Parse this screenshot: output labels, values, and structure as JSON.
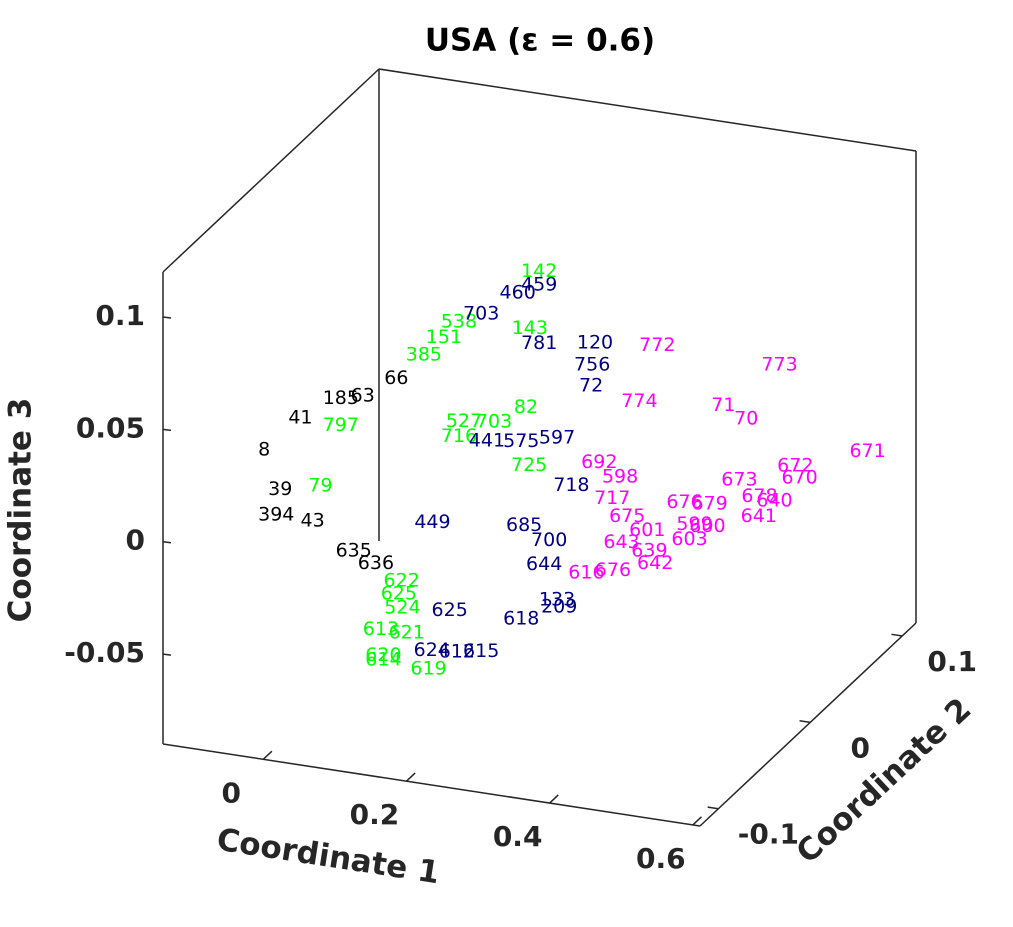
{
  "chart_data": {
    "type": "scatter3d",
    "title": "USA (ε = 0.6)",
    "xlabel": "Coordinate 1",
    "ylabel": "Coordinate 2",
    "zlabel": "Coordinate 3",
    "xlim": [
      -0.14,
      0.61
    ],
    "ylim": [
      -0.12,
      0.115
    ],
    "zlim": [
      -0.09,
      0.12
    ],
    "xticks": [
      0,
      0.2,
      0.4,
      0.6
    ],
    "yticks": [
      -0.1,
      0,
      0.1
    ],
    "zticks": [
      -0.05,
      0,
      0.05,
      0.1
    ],
    "series": [
      {
        "color": "#000000",
        "labels": [
          "185",
          "41",
          "8",
          "39",
          "394",
          "43",
          "635",
          "636",
          "66",
          "63"
        ],
        "x": [
          -0.071,
          -0.119,
          -0.097,
          -0.083,
          -0.097,
          -0.102,
          -0.053,
          -0.022,
          0.015,
          -0.032
        ],
        "y": [
          0,
          0,
          -0.05,
          -0.05,
          -0.05,
          0,
          0,
          0,
          0,
          0
        ],
        "z": [
          0.021,
          0.01,
          0.016,
          -0.001,
          -0.013,
          -0.035,
          -0.046,
          -0.05,
          0.034,
          0.024
        ]
      },
      {
        "color": "#00ff00",
        "labels": [
          "142",
          "143",
          "82",
          "524",
          "613",
          "621",
          "620",
          "614",
          "619",
          "622",
          "625",
          "797",
          "79",
          "538",
          "151",
          "385",
          "716",
          "725",
          "527",
          "703"
        ],
        "x": [
          0.206,
          0.193,
          0.196,
          0.015,
          -0.015,
          0.021,
          0.027,
          0.027,
          0.09,
          0.014,
          0.01,
          -0.071,
          -0.091,
          0.094,
          0.073,
          0.045,
          0.094,
          0.192,
          0.101,
          0.143
        ],
        "y": [
          0,
          0,
          0,
          0,
          0,
          0,
          -0.03,
          -0.03,
          -0.03,
          0,
          0,
          0,
          0,
          0,
          0,
          0,
          0,
          0,
          0,
          0
        ],
        "z": [
          0.091,
          0.065,
          0.03,
          -0.068,
          -0.079,
          -0.079,
          -0.077,
          -0.079,
          -0.08,
          -0.056,
          -0.062,
          0.009,
          -0.019,
          0.063,
          0.055,
          0.046,
          0.012,
          0.004,
          0.019,
          0.021
        ]
      },
      {
        "color": "#000080",
        "labels": [
          "459",
          "460",
          "703",
          "120",
          "72",
          "756",
          "597",
          "575",
          "718",
          "685",
          "700",
          "644",
          "133",
          "209",
          "618",
          "625",
          "624",
          "615",
          "612",
          "449",
          "781",
          "441"
        ],
        "x": [
          0.206,
          0.176,
          0.125,
          0.284,
          0.287,
          0.28,
          0.231,
          0.181,
          0.251,
          0.185,
          0.22,
          0.213,
          0.231,
          0.234,
          0.181,
          0.081,
          0.056,
          0.125,
          0.091,
          0.057,
          0.206,
          0.133
        ],
        "y": [
          0,
          0,
          0,
          0,
          0,
          0,
          0,
          0,
          0,
          0,
          0,
          0,
          0,
          0,
          0,
          0,
          0,
          0,
          0,
          0,
          0,
          0
        ],
        "z": [
          0.085,
          0.08,
          0.068,
          0.063,
          0.044,
          0.053,
          0.018,
          0.014,
          -0.002,
          -0.023,
          -0.028,
          -0.039,
          -0.054,
          -0.057,
          -0.065,
          -0.066,
          -0.085,
          -0.082,
          -0.084,
          -0.028,
          0.059,
          0.012
        ]
      },
      {
        "color": "#ff00ff",
        "labels": [
          "772",
          "774",
          "773",
          "71",
          "70",
          "671",
          "672",
          "670",
          "673",
          "692",
          "598",
          "678",
          "640",
          "641",
          "679",
          "676",
          "717",
          "675",
          "601",
          "599",
          "600",
          "603",
          "643",
          "639",
          "642",
          "616",
          "676"
        ],
        "x": [
          0.371,
          0.346,
          0.439,
          0.369,
          0.401,
          0.562,
          0.461,
          0.467,
          0.383,
          0.29,
          0.319,
          0.411,
          0.432,
          0.41,
          0.444,
          0.409,
          0.308,
          0.329,
          0.357,
          0.423,
          0.441,
          0.416,
          0.321,
          0.36,
          0.368,
          0.272,
          0.309
        ],
        "y": [
          0,
          0,
          0.08,
          0.08,
          0.08,
          0.08,
          0.08,
          0.08,
          0.08,
          0,
          0,
          0.08,
          0.08,
          0.08,
          0,
          0,
          0,
          0,
          0,
          0,
          0,
          0,
          0,
          0,
          0,
          0,
          0
        ],
        "z": [
          0.066,
          0.04,
          0.03,
          0.0086,
          0.004,
          -0.0025,
          -0.014,
          -0.019,
          -0.024,
          0.01,
          0.005,
          -0.03,
          -0.031,
          -0.039,
          -0.001,
          -0.002,
          -0.005,
          -0.012,
          -0.017,
          -0.011,
          -0.011,
          -0.018,
          -0.024,
          -0.026,
          -0.031,
          -0.04,
          -0.037
        ]
      }
    ]
  }
}
